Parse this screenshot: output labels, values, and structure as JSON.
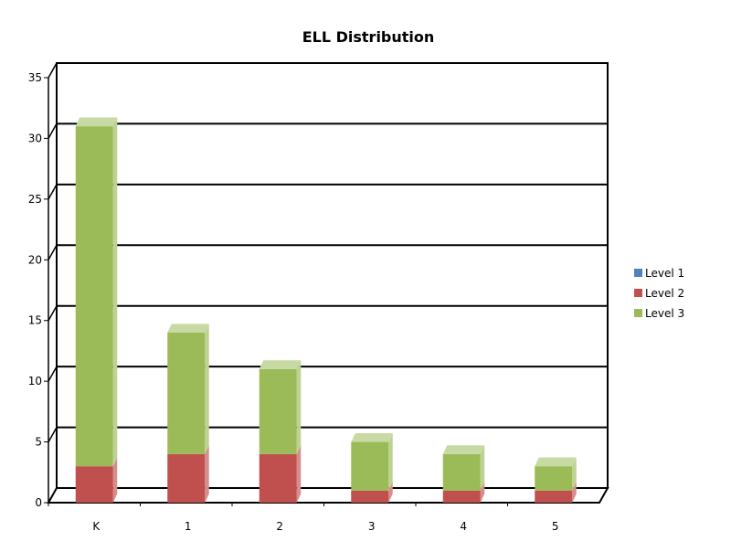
{
  "chart_data": {
    "type": "bar",
    "subtype": "stacked-3d",
    "title": "ELL Distribution",
    "xlabel": "",
    "ylabel": "",
    "categories": [
      "K",
      "1",
      "2",
      "3",
      "4",
      "5"
    ],
    "series": [
      {
        "name": "Level 1",
        "values": [
          0,
          0,
          0,
          0,
          0,
          0
        ],
        "color": "#4F81BD"
      },
      {
        "name": "Level 2",
        "values": [
          3,
          4,
          4,
          1,
          1,
          1
        ],
        "color": "#C0504D"
      },
      {
        "name": "Level 3",
        "values": [
          28,
          10,
          7,
          4,
          3,
          2
        ],
        "color": "#9BBB59"
      }
    ],
    "ylim": [
      0,
      35
    ],
    "yticks": [
      0,
      5,
      10,
      15,
      20,
      25,
      30,
      35
    ],
    "grid": true,
    "legend_position": "right"
  }
}
